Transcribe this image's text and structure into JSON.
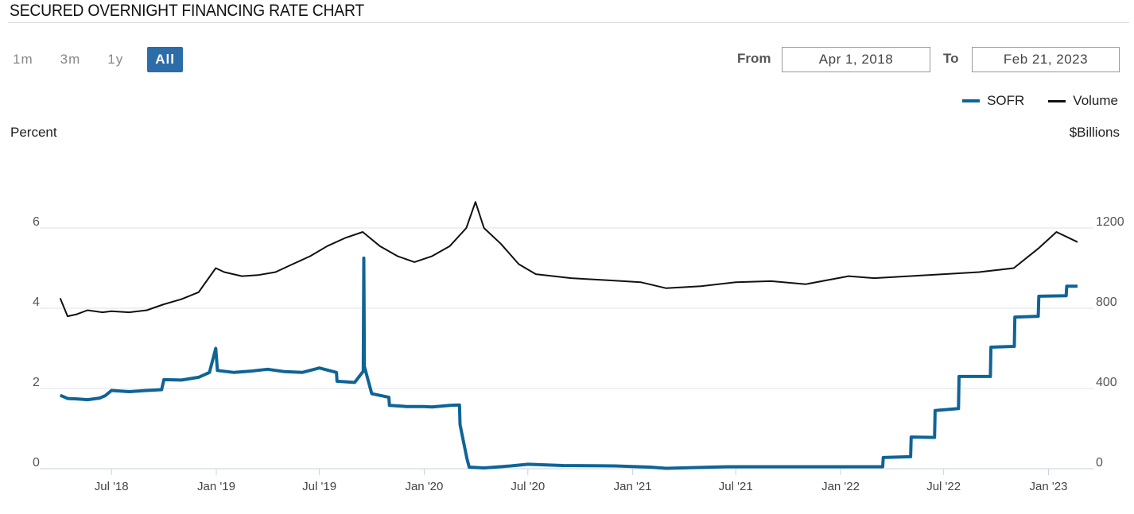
{
  "header": {
    "title": "SECURED OVERNIGHT FINANCING RATE CHART"
  },
  "range_buttons": [
    {
      "label": "1m",
      "active": false
    },
    {
      "label": "3m",
      "active": false
    },
    {
      "label": "1y",
      "active": false
    },
    {
      "label": "All",
      "active": true
    }
  ],
  "date_range": {
    "from_label": "From",
    "from_value": "Apr 1, 2018",
    "to_label": "To",
    "to_value": "Feb 21, 2023"
  },
  "legend": [
    {
      "name": "SOFR",
      "color": "#0f6496"
    },
    {
      "name": "Volume",
      "color": "#111111"
    }
  ],
  "axis_titles": {
    "left": "Percent",
    "right": "$Billions"
  },
  "chart_data": {
    "type": "line",
    "x_tick_labels": [
      "Jul '18",
      "Jan '19",
      "Jul '19",
      "Jan '20",
      "Jul '20",
      "Jan '21",
      "Jul '21",
      "Jan '22",
      "Jul '22",
      "Jan '23"
    ],
    "x_range": [
      "2018-04-01",
      "2023-02-21"
    ],
    "y_left": {
      "label": "Percent",
      "ticks": [
        "0",
        "2",
        "4",
        "6"
      ],
      "range": [
        0,
        8
      ]
    },
    "y_right": {
      "label": "$Billions",
      "ticks": [
        "0",
        "400",
        "800",
        "1200"
      ],
      "range": [
        0,
        1600
      ]
    },
    "grid": true,
    "legend_position": "top-right",
    "series": [
      {
        "name": "SOFR",
        "axis": "left",
        "color": "#0f6496",
        "points": [
          [
            "2018-04-02",
            1.83
          ],
          [
            "2018-04-15",
            1.75
          ],
          [
            "2018-05-01",
            1.74
          ],
          [
            "2018-05-20",
            1.72
          ],
          [
            "2018-06-10",
            1.76
          ],
          [
            "2018-06-20",
            1.82
          ],
          [
            "2018-07-01",
            1.95
          ],
          [
            "2018-08-01",
            1.92
          ],
          [
            "2018-09-01",
            1.95
          ],
          [
            "2018-09-27",
            1.97
          ],
          [
            "2018-10-01",
            2.22
          ],
          [
            "2018-11-01",
            2.21
          ],
          [
            "2018-12-01",
            2.28
          ],
          [
            "2018-12-20",
            2.4
          ],
          [
            "2018-12-31",
            3.0
          ],
          [
            "2019-01-03",
            2.45
          ],
          [
            "2019-02-01",
            2.4
          ],
          [
            "2019-03-01",
            2.43
          ],
          [
            "2019-04-01",
            2.48
          ],
          [
            "2019-05-01",
            2.42
          ],
          [
            "2019-06-01",
            2.4
          ],
          [
            "2019-07-01",
            2.51
          ],
          [
            "2019-07-31",
            2.4
          ],
          [
            "2019-08-01",
            2.18
          ],
          [
            "2019-09-01",
            2.15
          ],
          [
            "2019-09-16",
            2.43
          ],
          [
            "2019-09-17",
            5.25
          ],
          [
            "2019-09-18",
            2.55
          ],
          [
            "2019-10-01",
            1.87
          ],
          [
            "2019-10-31",
            1.78
          ],
          [
            "2019-11-01",
            1.58
          ],
          [
            "2019-12-01",
            1.55
          ],
          [
            "2019-12-31",
            1.55
          ],
          [
            "2020-01-15",
            1.54
          ],
          [
            "2020-02-15",
            1.58
          ],
          [
            "2020-03-03",
            1.59
          ],
          [
            "2020-03-04",
            1.1
          ],
          [
            "2020-03-16",
            0.26
          ],
          [
            "2020-03-20",
            0.04
          ],
          [
            "2020-04-15",
            0.02
          ],
          [
            "2020-06-01",
            0.07
          ],
          [
            "2020-07-01",
            0.11
          ],
          [
            "2020-09-01",
            0.08
          ],
          [
            "2020-12-01",
            0.07
          ],
          [
            "2021-02-01",
            0.04
          ],
          [
            "2021-03-01",
            0.01
          ],
          [
            "2021-06-17",
            0.05
          ],
          [
            "2021-12-31",
            0.05
          ],
          [
            "2022-03-16",
            0.05
          ],
          [
            "2022-03-17",
            0.28
          ],
          [
            "2022-05-04",
            0.3
          ],
          [
            "2022-05-05",
            0.79
          ],
          [
            "2022-06-15",
            0.78
          ],
          [
            "2022-06-16",
            1.45
          ],
          [
            "2022-07-27",
            1.5
          ],
          [
            "2022-07-28",
            2.3
          ],
          [
            "2022-09-21",
            2.3
          ],
          [
            "2022-09-22",
            3.03
          ],
          [
            "2022-11-02",
            3.05
          ],
          [
            "2022-11-03",
            3.78
          ],
          [
            "2022-12-14",
            3.8
          ],
          [
            "2022-12-15",
            4.3
          ],
          [
            "2023-02-01",
            4.31
          ],
          [
            "2023-02-02",
            4.55
          ],
          [
            "2023-02-21",
            4.55
          ]
        ]
      },
      {
        "name": "Volume",
        "axis": "right",
        "color": "#111111",
        "points": [
          [
            "2018-04-02",
            850
          ],
          [
            "2018-04-15",
            760
          ],
          [
            "2018-05-01",
            770
          ],
          [
            "2018-05-20",
            790
          ],
          [
            "2018-06-15",
            780
          ],
          [
            "2018-07-01",
            785
          ],
          [
            "2018-08-01",
            780
          ],
          [
            "2018-09-01",
            790
          ],
          [
            "2018-10-01",
            820
          ],
          [
            "2018-11-01",
            845
          ],
          [
            "2018-12-01",
            880
          ],
          [
            "2018-12-31",
            1000
          ],
          [
            "2019-01-15",
            980
          ],
          [
            "2019-02-15",
            960
          ],
          [
            "2019-03-15",
            965
          ],
          [
            "2019-04-15",
            980
          ],
          [
            "2019-05-15",
            1020
          ],
          [
            "2019-06-15",
            1060
          ],
          [
            "2019-07-15",
            1110
          ],
          [
            "2019-08-15",
            1150
          ],
          [
            "2019-09-15",
            1180
          ],
          [
            "2019-10-15",
            1110
          ],
          [
            "2019-11-15",
            1060
          ],
          [
            "2019-12-15",
            1030
          ],
          [
            "2020-01-15",
            1060
          ],
          [
            "2020-02-15",
            1110
          ],
          [
            "2020-03-15",
            1200
          ],
          [
            "2020-03-31",
            1330
          ],
          [
            "2020-04-15",
            1200
          ],
          [
            "2020-05-15",
            1120
          ],
          [
            "2020-06-15",
            1020
          ],
          [
            "2020-07-15",
            970
          ],
          [
            "2020-08-15",
            960
          ],
          [
            "2020-09-15",
            950
          ],
          [
            "2020-10-15",
            945
          ],
          [
            "2020-11-15",
            940
          ],
          [
            "2020-12-15",
            935
          ],
          [
            "2021-01-15",
            930
          ],
          [
            "2021-03-01",
            900
          ],
          [
            "2021-05-01",
            910
          ],
          [
            "2021-07-01",
            930
          ],
          [
            "2021-09-01",
            935
          ],
          [
            "2021-11-01",
            920
          ],
          [
            "2022-01-15",
            960
          ],
          [
            "2022-03-01",
            950
          ],
          [
            "2022-05-01",
            960
          ],
          [
            "2022-07-01",
            970
          ],
          [
            "2022-09-01",
            980
          ],
          [
            "2022-11-01",
            1000
          ],
          [
            "2022-12-15",
            1100
          ],
          [
            "2023-01-15",
            1180
          ],
          [
            "2023-02-21",
            1130
          ]
        ]
      }
    ]
  }
}
